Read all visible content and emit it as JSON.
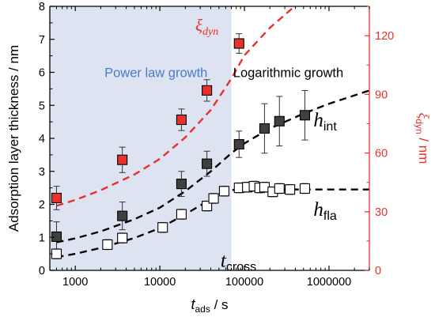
{
  "chart_data": {
    "type": "scatter",
    "x_scale": "log",
    "xlim": [
      500,
      3000000
    ],
    "ylim_left": [
      0,
      8
    ],
    "ylim_right": [
      0,
      135
    ],
    "x_ticks": [
      {
        "value": 1000,
        "label": "1000"
      },
      {
        "value": 10000,
        "label": "10000"
      },
      {
        "value": 100000,
        "label": "100000"
      },
      {
        "value": 1000000,
        "label": "1000000"
      }
    ],
    "y_left_ticks": [
      {
        "value": 0,
        "label": "0"
      },
      {
        "value": 1,
        "label": "1"
      },
      {
        "value": 2,
        "label": "2"
      },
      {
        "value": 3,
        "label": "3"
      },
      {
        "value": 4,
        "label": "4"
      },
      {
        "value": 5,
        "label": "5"
      },
      {
        "value": 6,
        "label": "6"
      },
      {
        "value": 7,
        "label": "7"
      },
      {
        "value": 8,
        "label": "8"
      }
    ],
    "y_right_ticks": [
      {
        "value": 0,
        "label": "0"
      },
      {
        "value": 30,
        "label": "30"
      },
      {
        "value": 60,
        "label": "60"
      },
      {
        "value": 90,
        "label": "90"
      },
      {
        "value": 120,
        "label": "120"
      }
    ],
    "xlabel": {
      "main": "t",
      "sub": "ads",
      "unit": " / s"
    },
    "ylabel_left": "Adsorption layer thickness / nm",
    "ylabel_right": {
      "greek": "ξ",
      "sub": "dyn",
      "unit": " / nm"
    },
    "regions": [
      {
        "name": "power-law-region",
        "label": "Power law growth",
        "x_start": 500,
        "x_end": 70000,
        "color": "#dde3f1",
        "label_x": 9000,
        "label_y": 6.0
      },
      {
        "name": "logarithmic-region",
        "label": "Logarithmic growth",
        "label_x": 330000,
        "label_y": 6.0
      }
    ],
    "annotations": [
      {
        "name": "h-int-label",
        "main": "h",
        "sub": "int",
        "x": 900000,
        "y": 4.55,
        "color": "#000000"
      },
      {
        "name": "h-fla-label",
        "main": "h",
        "sub": "fla",
        "x": 900000,
        "y": 1.85,
        "color": "#000000"
      },
      {
        "name": "t-cross-label",
        "main": "t",
        "sub": "cross",
        "x": 85000,
        "y": 0.3,
        "color": "#000000"
      },
      {
        "name": "xi-dyn-label",
        "main": "ξ",
        "sub": "dyn",
        "x": 36000,
        "y": 7.45,
        "color": "#e8302c"
      }
    ],
    "series": [
      {
        "name": "h_int",
        "axis": "left",
        "marker": "square-filled",
        "fill": "#404040",
        "stroke": "#000000",
        "points": [
          {
            "x": 600,
            "y": 1.02,
            "err": 0.45
          },
          {
            "x": 3600,
            "y": 1.65,
            "err": 0.42
          },
          {
            "x": 18000,
            "y": 2.62,
            "err": 0.38
          },
          {
            "x": 36000,
            "y": 3.23,
            "err": 0.38
          },
          {
            "x": 86400,
            "y": 3.82,
            "err": 0.4
          },
          {
            "x": 172800,
            "y": 4.3,
            "err": 0.75
          },
          {
            "x": 259200,
            "y": 4.52,
            "err": 0.75
          },
          {
            "x": 518400,
            "y": 4.7,
            "err": 0.75
          }
        ]
      },
      {
        "name": "h_fla",
        "axis": "left",
        "marker": "square-open",
        "fill": "#ffffff",
        "stroke": "#000000",
        "points": [
          {
            "x": 600,
            "y": 0.5,
            "err": 0.15
          },
          {
            "x": 2400,
            "y": 0.78,
            "err": 0.15
          },
          {
            "x": 3600,
            "y": 0.98,
            "err": 0.15
          },
          {
            "x": 10800,
            "y": 1.3,
            "err": 0.15
          },
          {
            "x": 18000,
            "y": 1.7,
            "err": 0.15
          },
          {
            "x": 36000,
            "y": 1.95,
            "err": 0.15
          },
          {
            "x": 43200,
            "y": 2.18,
            "err": 0.15
          },
          {
            "x": 57600,
            "y": 2.4,
            "err": 0.15
          },
          {
            "x": 86400,
            "y": 2.5,
            "err": 0.15
          },
          {
            "x": 108000,
            "y": 2.52,
            "err": 0.15
          },
          {
            "x": 129600,
            "y": 2.55,
            "err": 0.15
          },
          {
            "x": 151200,
            "y": 2.5,
            "err": 0.15
          },
          {
            "x": 172800,
            "y": 2.52,
            "err": 0.15
          },
          {
            "x": 216000,
            "y": 2.38,
            "err": 0.15
          },
          {
            "x": 259200,
            "y": 2.48,
            "err": 0.15
          },
          {
            "x": 345600,
            "y": 2.45,
            "err": 0.15
          },
          {
            "x": 518400,
            "y": 2.48,
            "err": 0.15
          }
        ]
      },
      {
        "name": "xi_dyn",
        "axis": "right",
        "marker": "square-filled",
        "fill": "#e8302c",
        "stroke": "#000000",
        "points": [
          {
            "x": 600,
            "y": 37.0,
            "err": 6.0
          },
          {
            "x": 3600,
            "y": 56.5,
            "err": 6.5
          },
          {
            "x": 18000,
            "y": 77.0,
            "err": 5.5
          },
          {
            "x": 36000,
            "y": 92.0,
            "err": 5.5
          },
          {
            "x": 86400,
            "y": 116.0,
            "err": 5.0
          }
        ]
      }
    ],
    "fits": [
      {
        "name": "h-int-fit",
        "axis": "left",
        "color": "#000000",
        "points": [
          [
            600,
            0.85
          ],
          [
            1000,
            0.97
          ],
          [
            2000,
            1.18
          ],
          [
            5000,
            1.55
          ],
          [
            10000,
            1.9
          ],
          [
            20000,
            2.4
          ],
          [
            40000,
            3.0
          ],
          [
            70000,
            3.55
          ],
          [
            100000,
            3.85
          ],
          [
            200000,
            4.3
          ],
          [
            500000,
            4.75
          ],
          [
            1000000,
            5.05
          ],
          [
            3000000,
            5.45
          ]
        ]
      },
      {
        "name": "h-fla-fit",
        "axis": "left",
        "color": "#000000",
        "points": [
          [
            600,
            0.4
          ],
          [
            1000,
            0.5
          ],
          [
            2000,
            0.68
          ],
          [
            5000,
            0.98
          ],
          [
            10000,
            1.28
          ],
          [
            20000,
            1.7
          ],
          [
            40000,
            2.15
          ],
          [
            60000,
            2.4
          ],
          [
            80000,
            2.45
          ],
          [
            100000,
            2.45
          ],
          [
            300000,
            2.45
          ],
          [
            1000000,
            2.45
          ],
          [
            3000000,
            2.45
          ]
        ]
      },
      {
        "name": "xi-dyn-fit",
        "axis": "right",
        "color": "#e8302c",
        "points": [
          [
            600,
            33.0
          ],
          [
            1000,
            36.0
          ],
          [
            2000,
            41.0
          ],
          [
            5000,
            49.0
          ],
          [
            10000,
            57.0
          ],
          [
            20000,
            68.0
          ],
          [
            40000,
            82.0
          ],
          [
            70000,
            98.0
          ],
          [
            100000,
            110.0
          ],
          [
            200000,
            124.0
          ],
          [
            500000,
            139.0
          ]
        ]
      }
    ],
    "colors": {
      "axis": "#000000",
      "right_axis": "#e8302c",
      "power_law_text": "#4a7bc8",
      "logarithmic_text": "#000000"
    }
  }
}
